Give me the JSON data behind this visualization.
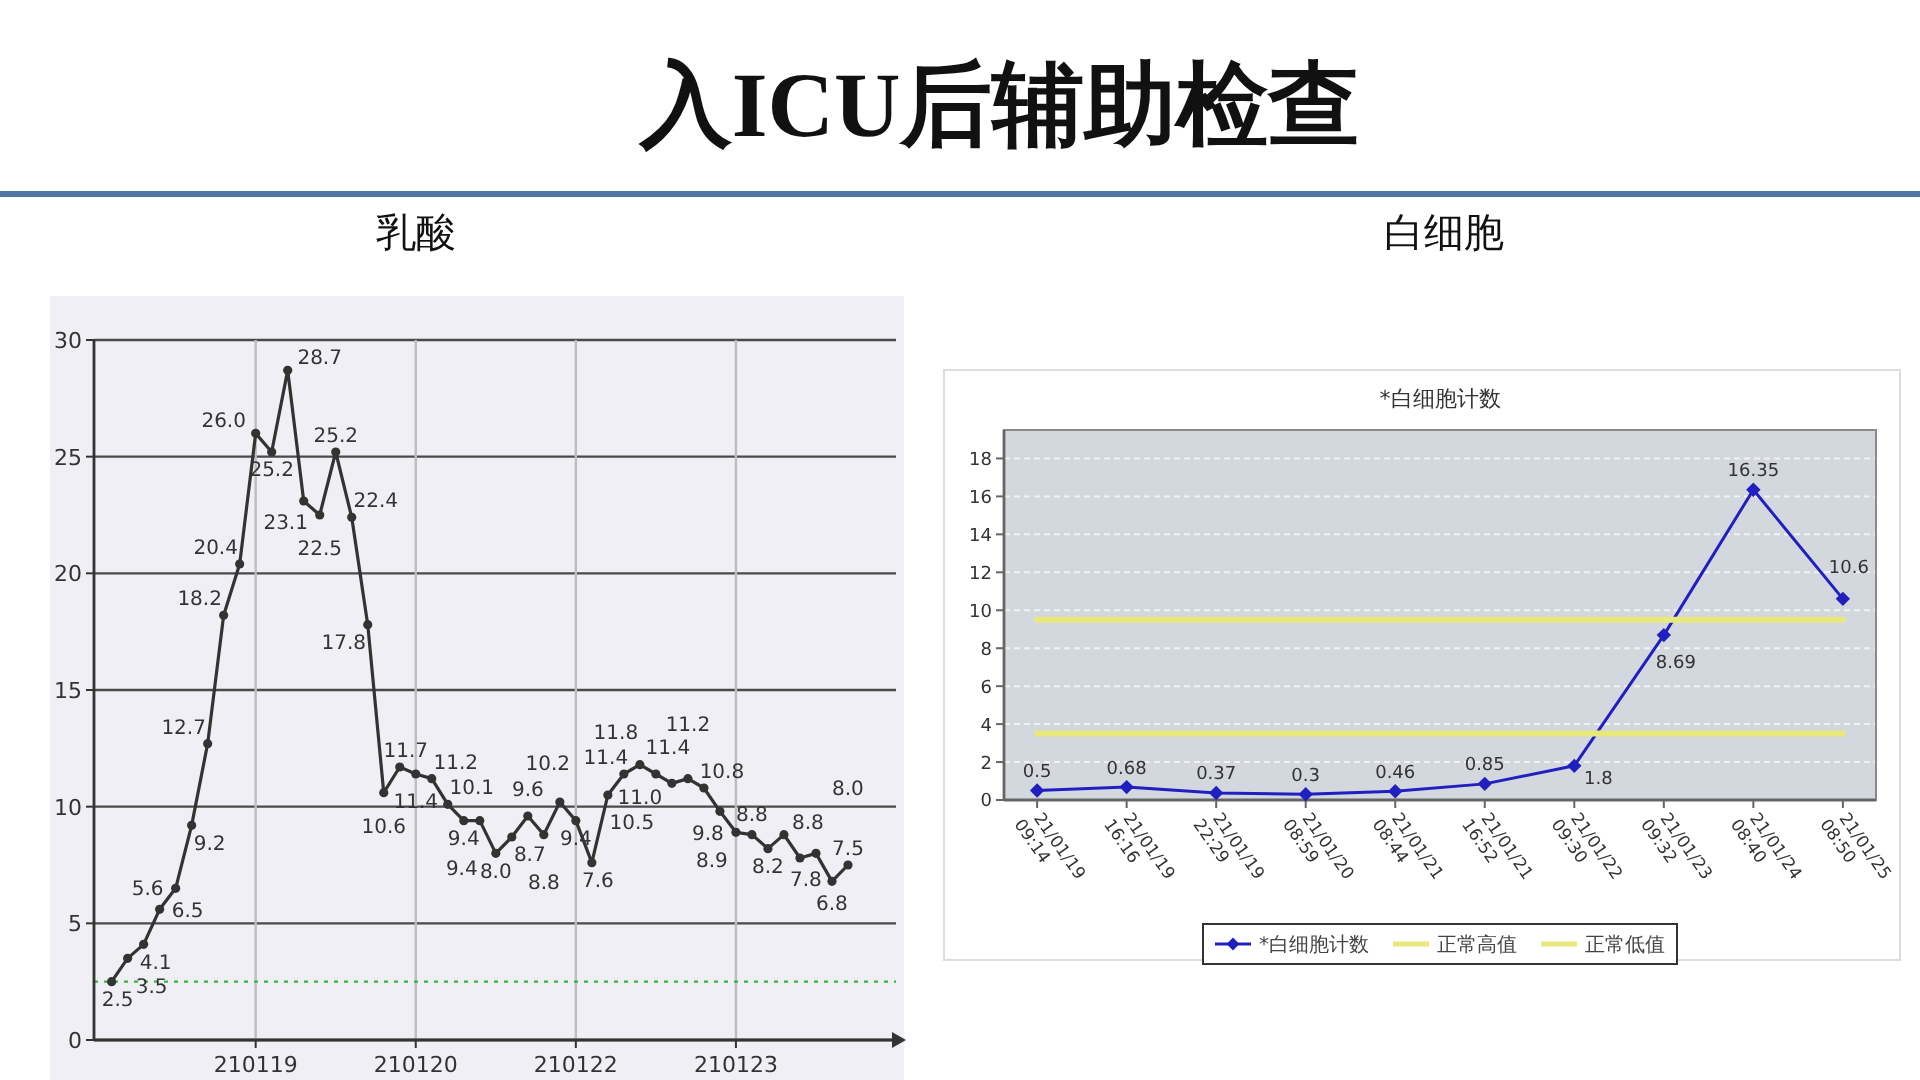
{
  "chart_data": [
    {
      "type": "line",
      "title": "入ICU后辅助检查",
      "subtitle": "乳酸",
      "categories": [
        null,
        null,
        null,
        null,
        null,
        null,
        null,
        null,
        null,
        "210119",
        null,
        null,
        null,
        null,
        null,
        null,
        null,
        null,
        null,
        "210120",
        null,
        null,
        null,
        null,
        null,
        null,
        null,
        null,
        null,
        "210122",
        null,
        null,
        null,
        null,
        null,
        null,
        null,
        null,
        null,
        "210123",
        null,
        null,
        null,
        null,
        null,
        null,
        null
      ],
      "values": [
        2.5,
        3.5,
        4.1,
        5.6,
        6.5,
        9.2,
        12.7,
        18.2,
        20.4,
        26.0,
        25.2,
        28.7,
        23.1,
        22.5,
        25.2,
        22.4,
        17.8,
        10.6,
        11.7,
        11.4,
        11.2,
        10.1,
        9.4,
        9.4,
        8.0,
        8.7,
        9.6,
        8.8,
        10.2,
        9.4,
        7.6,
        10.5,
        11.4,
        11.8,
        11.4,
        11.0,
        11.2,
        10.8,
        9.8,
        8.9,
        8.8,
        8.2,
        8.8,
        7.8,
        8.0,
        6.8,
        7.5
      ],
      "value_labels": [
        "2.5",
        "3.5",
        "4.1",
        "5.6",
        "6.5",
        "9.2",
        "12.7",
        "18.2",
        "20.4",
        "26.0",
        "25.2",
        "28.7",
        "23.1",
        "22.5",
        "25.2",
        "22.4",
        "17.8",
        "10.6",
        "11.7",
        "11.4",
        "11.2",
        "10.1",
        "9.4",
        "9.4",
        "8.0",
        "8.7",
        "9.6",
        "8.8",
        "10.2",
        "9.4",
        "7.6",
        "10.5",
        "11.4",
        "11.8",
        "11.4",
        "11.0",
        "11.2",
        "10.8",
        "9.8",
        "8.9",
        "8.8",
        "8.2",
        "8.8",
        "7.8",
        "8.0",
        "6.8",
        "7.5"
      ],
      "color": "#333333",
      "marker": "circle",
      "line_style": "solid",
      "ylim": [
        0,
        30
      ],
      "yticks": [
        0,
        5,
        10,
        15,
        20,
        25,
        30
      ],
      "grid": true,
      "ref_lines": [
        {
          "axis": "y",
          "value": 2.5,
          "color": "#33bb33",
          "line_style": "dotted"
        }
      ]
    },
    {
      "type": "line",
      "title": "白细胞",
      "subtitle": "*白细胞计数",
      "categories": [
        "21/01/19\n09:14",
        "21/01/19\n16:16",
        "21/01/19\n22:29",
        "21/01/20\n08:59",
        "21/01/21\n08:44",
        "21/01/21\n16:52",
        "21/01/22\n09:30",
        "21/01/23\n09:32",
        "21/01/24\n08:40",
        "21/01/25\n08:50"
      ],
      "series": [
        {
          "name": "*白细胞计数",
          "color": "#2020c0",
          "marker": "diamond",
          "values": [
            0.5,
            0.68,
            0.37,
            0.3,
            0.46,
            0.85,
            1.8,
            8.69,
            16.35,
            10.6
          ],
          "value_labels": [
            "0.5",
            "0.68",
            "0.37",
            "0.3",
            "0.46",
            "0.85",
            "1.8",
            "8.69",
            "16.35",
            "10.6"
          ]
        },
        {
          "name": "正常高值",
          "color": "#e8e87c",
          "marker": "none",
          "values": [
            9.5,
            9.5,
            9.5,
            9.5,
            9.5,
            9.5,
            9.5,
            9.5,
            9.5,
            9.5
          ]
        },
        {
          "name": "正常低值",
          "color": "#e8e87c",
          "marker": "none",
          "values": [
            3.5,
            3.5,
            3.5,
            3.5,
            3.5,
            3.5,
            3.5,
            3.5,
            3.5,
            3.5
          ]
        }
      ],
      "line_style": "solid",
      "ylim": [
        0,
        19.5
      ],
      "yticks": [
        0,
        2,
        4,
        6,
        8,
        10,
        12,
        14,
        16,
        18
      ],
      "grid": "y",
      "legend": "bottom"
    }
  ]
}
